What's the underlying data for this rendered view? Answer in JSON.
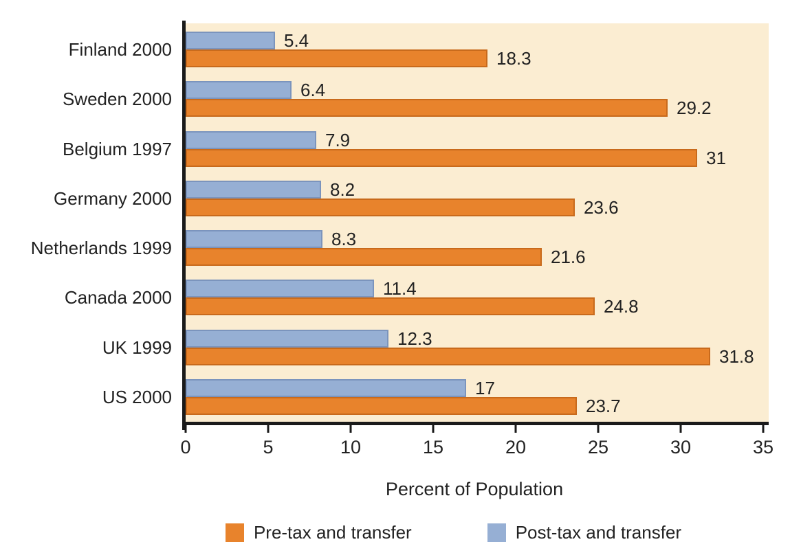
{
  "chart_data": {
    "type": "bar",
    "orientation": "horizontal",
    "title": "",
    "xlabel": "Percent of Population",
    "xlim": [
      0,
      35
    ],
    "xticks": [
      0,
      5,
      10,
      15,
      20,
      25,
      30,
      35
    ],
    "grid": false,
    "legend_position": "bottom",
    "plot_bg": "#FBEDD2",
    "axis_color": "#1a1a1a",
    "categories": [
      "Finland 2000",
      "Sweden 2000",
      "Belgium 1997",
      "Germany 2000",
      "Netherlands 1999",
      "Canada 2000",
      "UK 1999",
      "US 2000"
    ],
    "series": [
      {
        "key": "posttax",
        "name": "Post-tax and transfer",
        "color": "#96AFD4",
        "border_color": "#7B94BD",
        "values": [
          5.4,
          6.4,
          7.9,
          8.2,
          8.3,
          11.4,
          12.3,
          17
        ]
      },
      {
        "key": "pretax",
        "name": "Pre-tax and transfer",
        "color": "#E8832C",
        "border_color": "#C86A1C",
        "values": [
          18.3,
          29.2,
          31,
          23.6,
          21.6,
          24.8,
          31.8,
          23.7
        ]
      }
    ],
    "legend": [
      {
        "key": "pretax",
        "label": "Pre-tax and transfer"
      },
      {
        "key": "posttax",
        "label": "Post-tax and transfer"
      }
    ]
  }
}
